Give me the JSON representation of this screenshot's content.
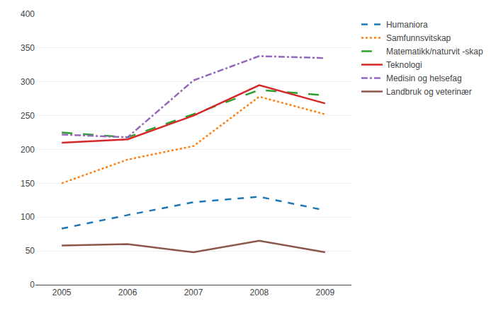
{
  "chart_data": {
    "type": "line",
    "x": [
      2005,
      2006,
      2007,
      2008,
      2009
    ],
    "series": [
      {
        "name": "Humaniora",
        "values": [
          83,
          103,
          122,
          130,
          110
        ],
        "line_style": "dash"
      },
      {
        "name": "Samfunnsvitskap",
        "values": [
          150,
          185,
          205,
          278,
          252
        ],
        "line_style": "dot"
      },
      {
        "name": "Matematikk/naturvit -skap",
        "values": [
          225,
          218,
          252,
          288,
          280
        ],
        "line_style": "longdash"
      },
      {
        "name": "Teknologi",
        "values": [
          210,
          215,
          250,
          295,
          268
        ],
        "line_style": "solid"
      },
      {
        "name": "Medisin og helsefag",
        "values": [
          222,
          218,
          302,
          338,
          335
        ],
        "line_style": "dashdot"
      },
      {
        "name": "Landbruk og veterinær",
        "values": [
          58,
          60,
          48,
          65,
          48
        ],
        "line_style": "solid"
      }
    ],
    "xlim": [
      2004.6,
      2009.4
    ],
    "xticks": [
      2005,
      2006,
      2007,
      2008,
      2009
    ],
    "ylim": [
      0,
      400
    ],
    "yticks": [
      0,
      50,
      100,
      150,
      200,
      250,
      300,
      350,
      400
    ],
    "grid": true,
    "legend": "right"
  }
}
